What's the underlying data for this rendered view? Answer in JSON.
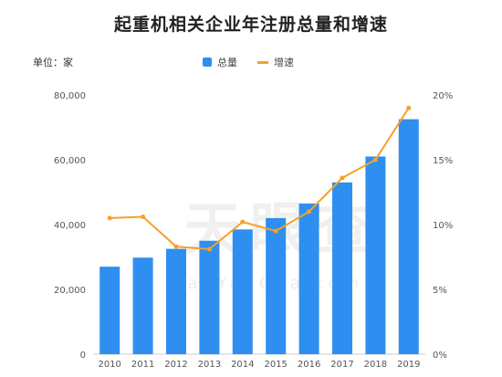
{
  "header": {
    "title": "起重机相关企业年注册总量和增速",
    "unit_label": "单位：家"
  },
  "watermark": {
    "main": "天眼查",
    "sub": "TianYanCha.com"
  },
  "colors": {
    "bar": "#2e8ff0",
    "line": "#f5a02a",
    "axis_text": "#555555",
    "grid": "#e6e6e6"
  },
  "chart_data": {
    "type": "bar",
    "title": "起重机相关企业年注册总量和增速",
    "categories": [
      "2010",
      "2011",
      "2012",
      "2013",
      "2014",
      "2015",
      "2016",
      "2017",
      "2018",
      "2019"
    ],
    "series": [
      {
        "name": "总量",
        "type": "bar",
        "axis": "left",
        "values": [
          27000,
          29800,
          32500,
          35000,
          38500,
          42000,
          46500,
          53000,
          61000,
          72500
        ]
      },
      {
        "name": "增速",
        "type": "line",
        "axis": "right",
        "values": [
          10.5,
          10.6,
          8.3,
          8.1,
          10.2,
          9.5,
          11.0,
          13.6,
          15.0,
          19.0
        ]
      }
    ],
    "y_left": {
      "range": [
        0,
        80000
      ],
      "ticks": [
        0,
        20000,
        40000,
        60000,
        80000
      ],
      "tick_labels": [
        "0",
        "20,000",
        "40,000",
        "60,000",
        "80,000"
      ]
    },
    "y_right": {
      "range": [
        0,
        20
      ],
      "ticks": [
        0,
        5,
        10,
        15,
        20
      ],
      "tick_labels": [
        "0%",
        "5%",
        "10%",
        "15%",
        "20%"
      ]
    },
    "legend_position": "top-center",
    "grid": false
  }
}
